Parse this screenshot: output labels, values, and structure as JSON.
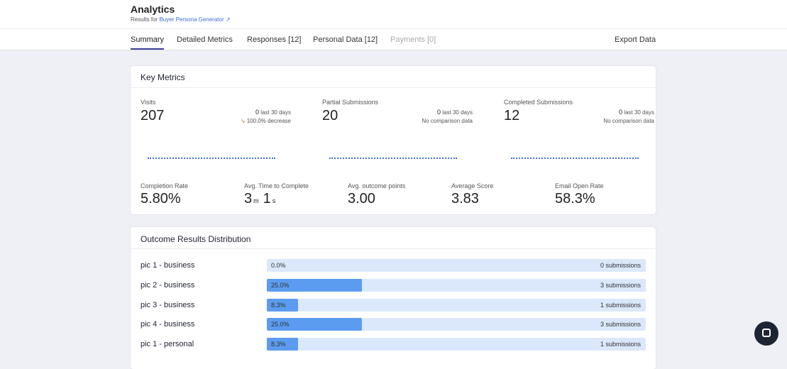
{
  "header": {
    "title": "Analytics",
    "subtitle": "Results for",
    "link": "Buyer Persona Generator"
  },
  "tabs": [
    "Summary",
    "Detailed Metrics",
    "Responses [12]",
    "Personal Data [12]",
    "Payments [0]"
  ],
  "export": "Export Data",
  "key_metrics": {
    "title": "Key Metrics",
    "cards": [
      {
        "label": "Visits",
        "value": "207",
        "recent": "0",
        "recent_label": "last 30 days",
        "change": "100.0% decrease"
      },
      {
        "label": "Partial Submissions",
        "value": "20",
        "recent": "0",
        "recent_label": "last 30 days",
        "change": "No comparison data"
      },
      {
        "label": "Completed Submissions",
        "value": "12",
        "recent": "0",
        "recent_label": "last 30 days",
        "change": "No comparison data"
      }
    ],
    "stats": [
      {
        "label": "Completion Rate",
        "value": "5.80%"
      },
      {
        "label": "Avg. Time to Complete",
        "value": "3",
        "unit": "m",
        "value2": "1",
        "unit2": "s"
      },
      {
        "label": "Avg. outcome points",
        "value": "3.00"
      },
      {
        "label": "Average Score",
        "value": "3.83"
      },
      {
        "label": "Email Open Rate",
        "value": "58.3%"
      }
    ]
  },
  "distribution": {
    "title": "Outcome Results Distribution",
    "rows": [
      {
        "name": "pic 1 - business",
        "share": 0,
        "share_label": "0.0%",
        "submissions": "0 submissions"
      },
      {
        "name": "pic 2 - business",
        "share": 25,
        "share_label": "25.0%",
        "submissions": "3 submissions"
      },
      {
        "name": "pic 3 - business",
        "share": 8.3,
        "share_label": "8.3%",
        "submissions": "1 submissions"
      },
      {
        "name": "pic 4 - business",
        "share": 25,
        "share_label": "25.0%",
        "submissions": "3 submissions"
      },
      {
        "name": "pic 1 - personal",
        "share": 8.3,
        "share_label": "8.3%",
        "submissions": "1 submissions"
      }
    ]
  }
}
